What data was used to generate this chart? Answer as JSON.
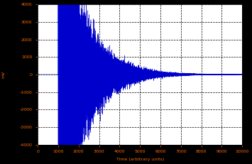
{
  "title": "",
  "xlabel_text": "Time (arbitrary units)",
  "ylabel_text": "mV",
  "xlim": [
    0,
    10000
  ],
  "ylim": [
    -4000,
    4000
  ],
  "yticks": [
    4000,
    3000,
    2000,
    1000,
    0,
    -1000,
    -2000,
    -3000,
    -4000
  ],
  "xticks": [
    0,
    1000,
    2000,
    3000,
    4000,
    5000,
    6000,
    7000,
    8000,
    9000,
    10000
  ],
  "signal_start": 1000,
  "noise_seed": 7,
  "line_color": "#0000CC",
  "bg_color": "#ffffff",
  "fig_bg_color": "#000000",
  "grid_color": "#555555",
  "tick_color": "#FF6600",
  "label_color": "#FF6600",
  "initial_amplitude": 3800,
  "decay_rate": 0.0008
}
